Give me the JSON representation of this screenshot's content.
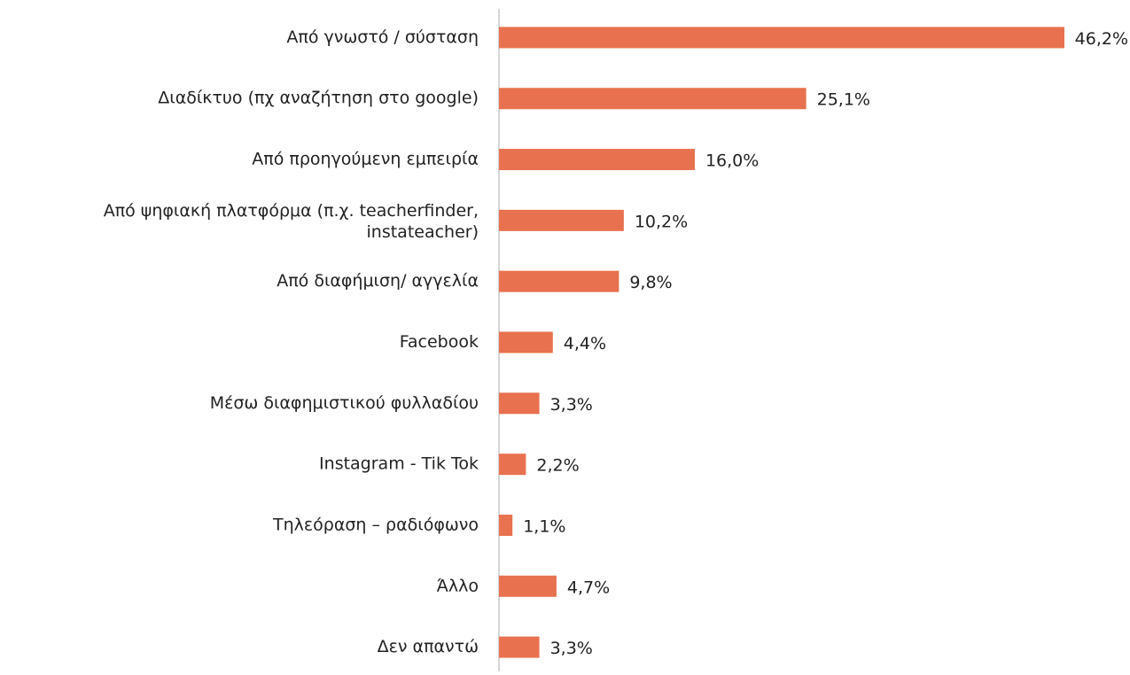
{
  "chart_data": {
    "type": "bar",
    "orientation": "horizontal",
    "categories": [
      "Από γνωστό / σύσταση",
      "Διαδίκτυο (πχ αναζήτηση στο google)",
      "Από προηγούμενη εμπειρία",
      "Από ψηφιακή πλατφόρμα (π.χ. teacherfinder, instateacher)",
      "Από διαφήμιση/ αγγελία",
      "Facebook",
      "Μέσω διαφημιστικού φυλλαδίου",
      "Instagram - Tik Tok",
      "Τηλεόραση – ραδιόφωνο",
      "Άλλο",
      "Δεν απαντώ"
    ],
    "values": [
      46.2,
      25.1,
      16.0,
      10.2,
      9.8,
      4.4,
      3.3,
      2.2,
      1.1,
      4.7,
      3.3
    ],
    "value_labels": [
      "46,2%",
      "25,1%",
      "16,0%",
      "10,2%",
      "9,8%",
      "4,4%",
      "3,3%",
      "2,2%",
      "1,1%",
      "4,7%",
      "3,3%"
    ],
    "color": "#e8714f",
    "xlim": [
      0,
      46.2
    ]
  }
}
